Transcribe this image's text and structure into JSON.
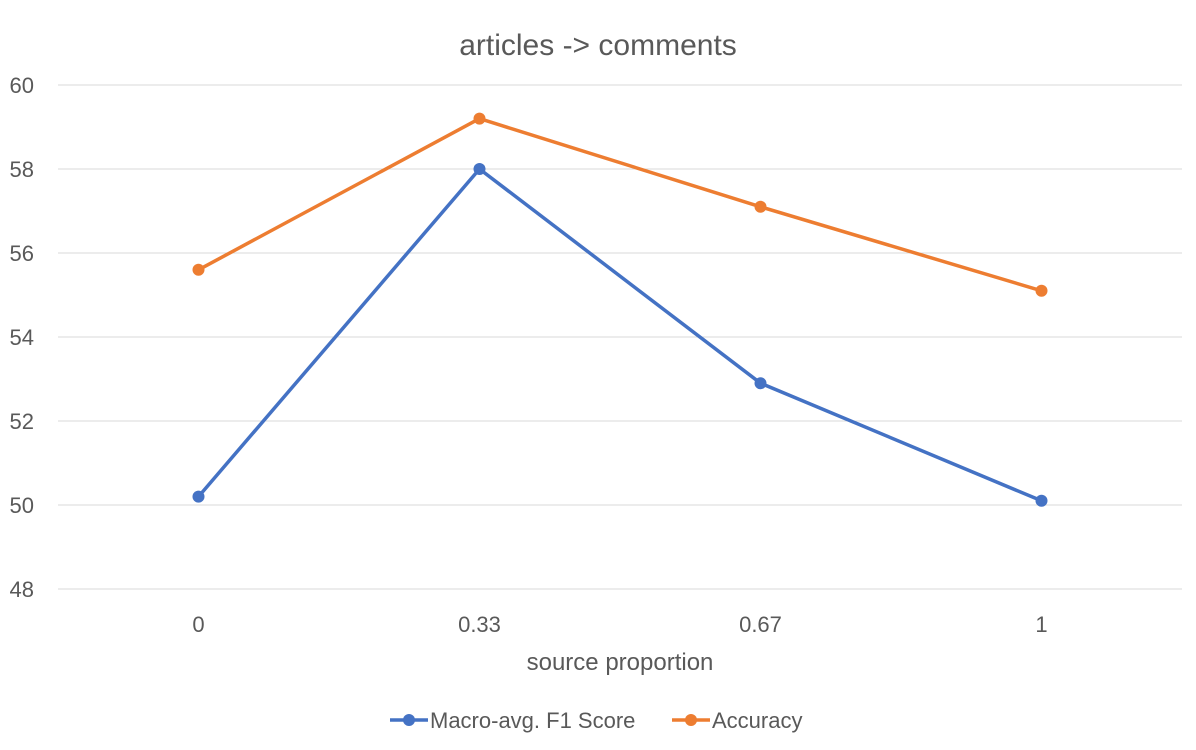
{
  "chart_data": {
    "type": "line",
    "title": "articles -> comments",
    "xlabel": "source proportion",
    "ylabel": "",
    "categories": [
      "0",
      "0.33",
      "0.67",
      "1"
    ],
    "ylim": [
      48,
      60
    ],
    "yticks": [
      48,
      50,
      52,
      54,
      56,
      58,
      60
    ],
    "grid": true,
    "legend_position": "bottom",
    "series": [
      {
        "name": "Macro-avg. F1 Score",
        "color": "#4472c4",
        "values": [
          50.2,
          58.0,
          52.9,
          50.1
        ]
      },
      {
        "name": "Accuracy",
        "color": "#ed7d31",
        "values": [
          55.6,
          59.2,
          57.1,
          55.1
        ]
      }
    ]
  }
}
